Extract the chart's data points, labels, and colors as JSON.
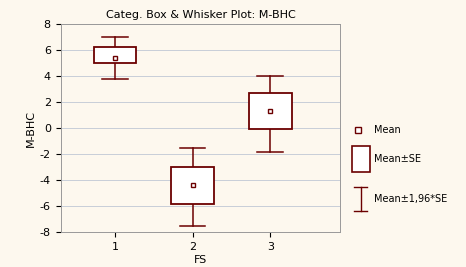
{
  "title": "Categ. Box & Whisker Plot: M-BHC",
  "xlabel": "FS",
  "ylabel": "M-BHC",
  "categories": [
    1,
    2,
    3
  ],
  "means": [
    5.4,
    -4.35,
    1.3
  ],
  "se_lower": [
    5.0,
    -5.8,
    -0.1
  ],
  "se_upper": [
    6.2,
    -3.0,
    2.7
  ],
  "whisker_lower": [
    3.8,
    -7.5,
    -1.8
  ],
  "whisker_upper": [
    7.0,
    -1.5,
    4.0
  ],
  "ylim": [
    -8,
    8
  ],
  "yticks": [
    -8,
    -6,
    -4,
    -2,
    0,
    2,
    4,
    6,
    8
  ],
  "xlim": [
    0.3,
    3.9
  ],
  "box_color": "#6B0000",
  "background_color": "#FDF8EE",
  "grid_color": "#C8CED8",
  "box_width": 0.55,
  "cap_ratio": 0.3,
  "title_fontsize": 8,
  "axis_label_fontsize": 8,
  "tick_fontsize": 8,
  "legend_fontsize": 7
}
